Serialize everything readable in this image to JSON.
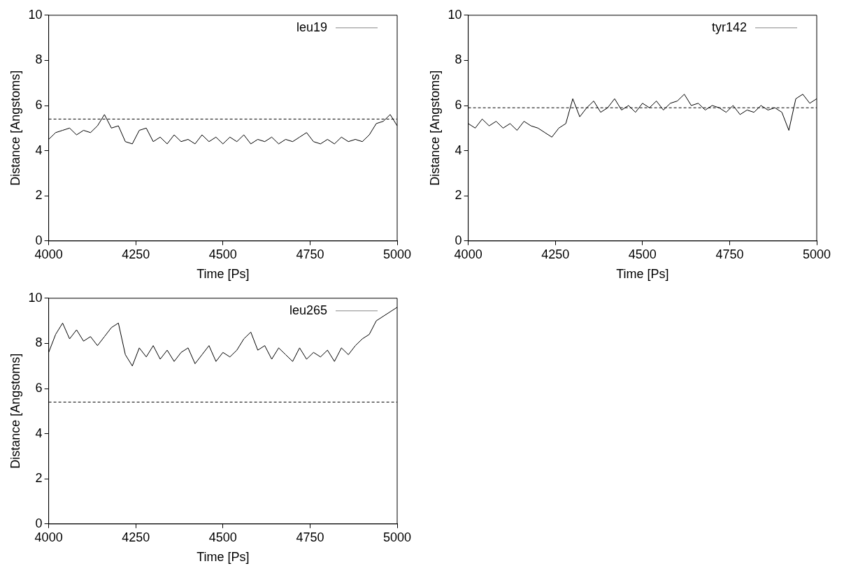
{
  "chart_data": [
    {
      "type": "line",
      "xlabel": "Time [Ps]",
      "ylabel": "Distance [Angstoms]",
      "xlim": [
        4000,
        5000
      ],
      "ylim": [
        0,
        10
      ],
      "xticks": [
        4000,
        4250,
        4500,
        4750,
        5000
      ],
      "yticks": [
        0,
        2,
        4,
        6,
        8,
        10
      ],
      "grid": false,
      "legend": "top right",
      "ref_lines": [
        {
          "axis": "y",
          "value": 5.4,
          "line_style": "dashed",
          "color": "#000000"
        }
      ],
      "x": [
        4000,
        4020,
        4040,
        4060,
        4080,
        4100,
        4120,
        4140,
        4160,
        4180,
        4200,
        4220,
        4240,
        4260,
        4280,
        4300,
        4320,
        4340,
        4360,
        4380,
        4400,
        4420,
        4440,
        4460,
        4480,
        4500,
        4520,
        4540,
        4560,
        4580,
        4600,
        4620,
        4640,
        4660,
        4680,
        4700,
        4720,
        4740,
        4760,
        4780,
        4800,
        4820,
        4840,
        4860,
        4880,
        4900,
        4920,
        4940,
        4960,
        4980,
        5000
      ],
      "series": [
        {
          "name": "leu19",
          "color": "#000000",
          "values": [
            4.5,
            4.8,
            4.9,
            5.0,
            4.7,
            4.9,
            4.8,
            5.1,
            5.6,
            5.0,
            5.1,
            4.4,
            4.3,
            4.9,
            5.0,
            4.4,
            4.6,
            4.3,
            4.7,
            4.4,
            4.5,
            4.3,
            4.7,
            4.4,
            4.6,
            4.3,
            4.6,
            4.4,
            4.7,
            4.3,
            4.5,
            4.4,
            4.6,
            4.3,
            4.5,
            4.4,
            4.6,
            4.8,
            4.4,
            4.3,
            4.5,
            4.3,
            4.6,
            4.4,
            4.5,
            4.4,
            4.7,
            5.2,
            5.3,
            5.6,
            5.1
          ]
        }
      ]
    },
    {
      "type": "line",
      "xlabel": "Time [Ps]",
      "ylabel": "Distance [Angstoms]",
      "xlim": [
        4000,
        5000
      ],
      "ylim": [
        0,
        10
      ],
      "xticks": [
        4000,
        4250,
        4500,
        4750,
        5000
      ],
      "yticks": [
        0,
        2,
        4,
        6,
        8,
        10
      ],
      "grid": false,
      "legend": "top right",
      "ref_lines": [
        {
          "axis": "y",
          "value": 5.9,
          "line_style": "dashed",
          "color": "#000000"
        }
      ],
      "x": [
        4000,
        4020,
        4040,
        4060,
        4080,
        4100,
        4120,
        4140,
        4160,
        4180,
        4200,
        4220,
        4240,
        4260,
        4280,
        4300,
        4320,
        4340,
        4360,
        4380,
        4400,
        4420,
        4440,
        4460,
        4480,
        4500,
        4520,
        4540,
        4560,
        4580,
        4600,
        4620,
        4640,
        4660,
        4680,
        4700,
        4720,
        4740,
        4760,
        4780,
        4800,
        4820,
        4840,
        4860,
        4880,
        4900,
        4920,
        4940,
        4960,
        4980,
        5000
      ],
      "series": [
        {
          "name": "tyr142",
          "color": "#000000",
          "values": [
            5.2,
            5.0,
            5.4,
            5.1,
            5.3,
            5.0,
            5.2,
            4.9,
            5.3,
            5.1,
            5.0,
            4.8,
            4.6,
            5.0,
            5.2,
            6.3,
            5.5,
            5.9,
            6.2,
            5.7,
            5.9,
            6.3,
            5.8,
            6.0,
            5.7,
            6.1,
            5.9,
            6.2,
            5.8,
            6.1,
            6.2,
            6.5,
            6.0,
            6.1,
            5.8,
            6.0,
            5.9,
            5.7,
            6.0,
            5.6,
            5.8,
            5.7,
            6.0,
            5.8,
            5.9,
            5.7,
            4.9,
            6.3,
            6.5,
            6.1,
            6.3
          ]
        }
      ]
    },
    {
      "type": "line",
      "xlabel": "Time [Ps]",
      "ylabel": "Distance [Angstoms]",
      "xlim": [
        4000,
        5000
      ],
      "ylim": [
        0,
        10
      ],
      "xticks": [
        4000,
        4250,
        4500,
        4750,
        5000
      ],
      "yticks": [
        0,
        2,
        4,
        6,
        8,
        10
      ],
      "grid": false,
      "legend": "top right",
      "ref_lines": [
        {
          "axis": "y",
          "value": 5.4,
          "line_style": "dashed",
          "color": "#000000"
        }
      ],
      "x": [
        4000,
        4020,
        4040,
        4060,
        4080,
        4100,
        4120,
        4140,
        4160,
        4180,
        4200,
        4220,
        4240,
        4260,
        4280,
        4300,
        4320,
        4340,
        4360,
        4380,
        4400,
        4420,
        4440,
        4460,
        4480,
        4500,
        4520,
        4540,
        4560,
        4580,
        4600,
        4620,
        4640,
        4660,
        4680,
        4700,
        4720,
        4740,
        4760,
        4780,
        4800,
        4820,
        4840,
        4860,
        4880,
        4900,
        4920,
        4940,
        4960,
        4980,
        5000
      ],
      "series": [
        {
          "name": "leu265",
          "color": "#000000",
          "values": [
            7.6,
            8.4,
            8.9,
            8.2,
            8.6,
            8.1,
            8.3,
            7.9,
            8.3,
            8.7,
            8.9,
            7.5,
            7.0,
            7.8,
            7.4,
            7.9,
            7.3,
            7.7,
            7.2,
            7.6,
            7.8,
            7.1,
            7.5,
            7.9,
            7.2,
            7.6,
            7.4,
            7.7,
            8.2,
            8.5,
            7.7,
            7.9,
            7.3,
            7.8,
            7.5,
            7.2,
            7.8,
            7.3,
            7.6,
            7.4,
            7.7,
            7.2,
            7.8,
            7.5,
            7.9,
            8.2,
            8.4,
            9.0,
            9.2,
            9.4,
            9.6
          ]
        }
      ]
    }
  ]
}
